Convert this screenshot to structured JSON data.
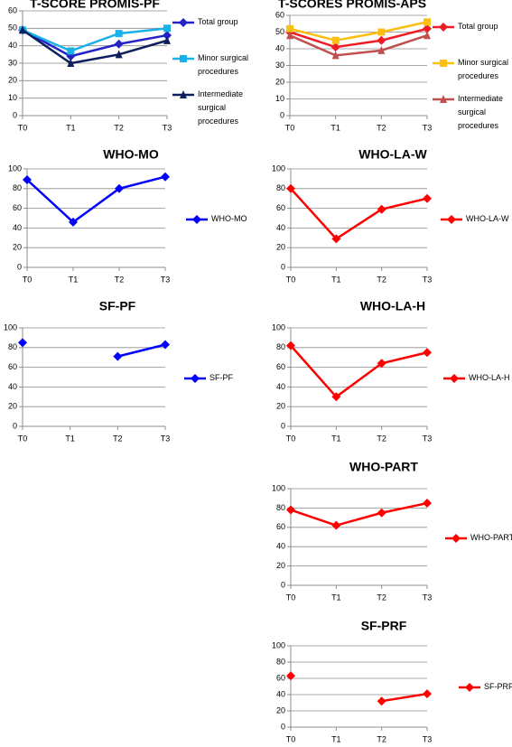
{
  "chart_data": [
    {
      "type": "line",
      "title": "T-SCORE PROMIS-PF",
      "categories": [
        "T0",
        "T1",
        "T2",
        "T3"
      ],
      "ylim": [
        0,
        60
      ],
      "yticks": [
        0,
        10,
        20,
        30,
        40,
        50,
        60
      ],
      "grid": true,
      "legend": "right",
      "series": [
        {
          "name": "Total group",
          "color": "#2323c8",
          "marker": "diamond",
          "values": [
            49,
            34,
            41,
            46
          ]
        },
        {
          "name": "Minor surgical procedures",
          "color": "#1ab0e8",
          "marker": "square",
          "values": [
            49,
            37,
            47,
            50
          ]
        },
        {
          "name": "Intermediate surgical procedures",
          "color": "#0d1f5c",
          "marker": "triangle",
          "values": [
            49,
            30,
            35,
            43
          ]
        }
      ]
    },
    {
      "type": "line",
      "title": "T-SCORES PROMIS-APS",
      "categories": [
        "T0",
        "T1",
        "T2",
        "T3"
      ],
      "ylim": [
        0,
        60
      ],
      "yticks": [
        0,
        10,
        20,
        30,
        40,
        50,
        60
      ],
      "grid": true,
      "legend": "right",
      "series": [
        {
          "name": "Total group",
          "color": "#ee1c24",
          "marker": "diamond",
          "values": [
            50,
            41,
            45,
            52
          ]
        },
        {
          "name": "Minor surgical procedures",
          "color": "#fbbf14",
          "marker": "square",
          "values": [
            52,
            45,
            50,
            56
          ]
        },
        {
          "name": "Intermediate surgical procedures",
          "color": "#c0504d",
          "marker": "triangle",
          "values": [
            48,
            36,
            39,
            48
          ]
        }
      ]
    },
    {
      "type": "line",
      "title": "WHO-MO",
      "categories": [
        "T0",
        "T1",
        "T2",
        "T3"
      ],
      "ylim": [
        0,
        100
      ],
      "yticks": [
        0,
        20,
        40,
        60,
        80,
        100
      ],
      "grid": true,
      "legend": "right",
      "series": [
        {
          "name": "WHO-MO",
          "color": "#0000ff",
          "marker": "diamond",
          "values": [
            89,
            46,
            80,
            92
          ]
        }
      ]
    },
    {
      "type": "line",
      "title": "WHO-LA-W",
      "categories": [
        "T0",
        "T1",
        "T2",
        "T3"
      ],
      "ylim": [
        0,
        100
      ],
      "yticks": [
        0,
        20,
        40,
        60,
        80,
        100
      ],
      "grid": true,
      "legend": "right",
      "series": [
        {
          "name": "WHO-LA-W",
          "color": "#ff0000",
          "marker": "diamond",
          "values": [
            80,
            29,
            59,
            70
          ]
        }
      ]
    },
    {
      "type": "line",
      "title": "SF-PF",
      "categories": [
        "T0",
        "T1",
        "T2",
        "T3"
      ],
      "ylim": [
        0,
        100
      ],
      "yticks": [
        0,
        20,
        40,
        60,
        80,
        100
      ],
      "grid": true,
      "legend": "right",
      "series": [
        {
          "name": "SF-PF",
          "color": "#0000ff",
          "marker": "diamond",
          "values": [
            85,
            null,
            71,
            83
          ]
        }
      ]
    },
    {
      "type": "line",
      "title": "WHO-LA-H",
      "categories": [
        "T0",
        "T1",
        "T2",
        "T3"
      ],
      "ylim": [
        0,
        100
      ],
      "yticks": [
        0,
        20,
        40,
        60,
        80,
        100
      ],
      "grid": true,
      "legend": "right",
      "series": [
        {
          "name": "WHO-LA-H",
          "color": "#ff0000",
          "marker": "diamond",
          "values": [
            82,
            30,
            64,
            75
          ]
        }
      ]
    },
    {
      "type": "line",
      "title": "WHO-PART",
      "categories": [
        "T0",
        "T1",
        "T2",
        "T3"
      ],
      "ylim": [
        0,
        100
      ],
      "yticks": [
        0,
        20,
        40,
        60,
        80,
        100
      ],
      "grid": true,
      "legend": "right",
      "series": [
        {
          "name": "WHO-PART",
          "color": "#ff0000",
          "marker": "diamond",
          "values": [
            78,
            62,
            75,
            85
          ]
        }
      ]
    },
    {
      "type": "line",
      "title": "SF-PRF",
      "categories": [
        "T0",
        "T1",
        "T2",
        "T3"
      ],
      "ylim": [
        0,
        100
      ],
      "yticks": [
        0,
        20,
        40,
        60,
        80,
        100
      ],
      "grid": true,
      "legend": "right",
      "series": [
        {
          "name": "SF-PRF",
          "color": "#ff0000",
          "marker": "diamond",
          "values": [
            63,
            null,
            32,
            41
          ]
        }
      ]
    }
  ]
}
